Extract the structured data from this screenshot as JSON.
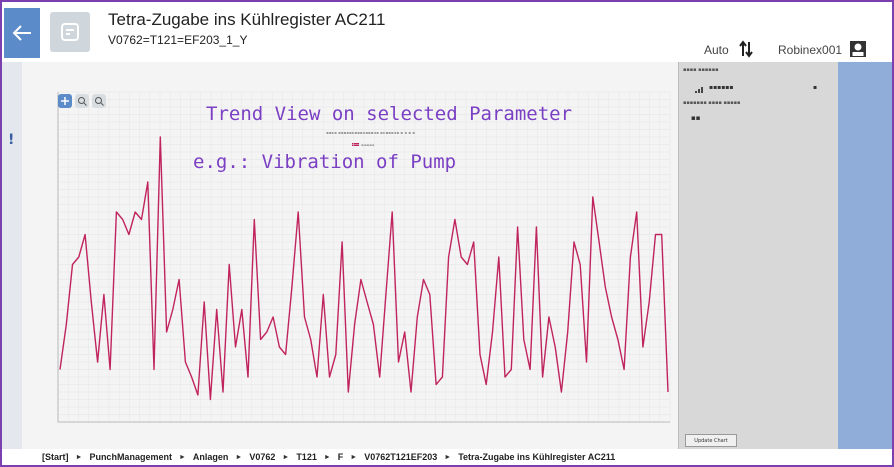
{
  "header": {
    "title": "Tetra-Zugabe ins Kühlregister AC211",
    "subtitle": "V0762=T121=EF203_1_Y",
    "mode_label": "Auto",
    "user_name": "Robinex001"
  },
  "chart": {
    "annotation_line1": "Trend View on selected Parameter",
    "annotation_line2": "e.g.: Vibration  of Pump"
  },
  "side_panel": {
    "update_button_label": "Update Chart"
  },
  "breadcrumb": {
    "items": [
      "[Start]",
      "PunchManagement",
      "Anlagen",
      "V0762",
      "T121",
      "F",
      "V0762T121EF203",
      "Tetra-Zugabe ins Kühlregister AC211"
    ]
  },
  "chart_data": {
    "type": "line",
    "series": [
      {
        "color": "#c0245e",
        "values": [
          485,
          515,
          555,
          560,
          575,
          530,
          490,
          535,
          485,
          590,
          585,
          575,
          590,
          585,
          610,
          485,
          640,
          510,
          525,
          545,
          490,
          480,
          468,
          530,
          465,
          525,
          470,
          555,
          500,
          525,
          480,
          585,
          505,
          510,
          520,
          500,
          495,
          540,
          590,
          520,
          505,
          480,
          535,
          480,
          495,
          570,
          470,
          515,
          545,
          530,
          515,
          480,
          535,
          590,
          490,
          510,
          470,
          520,
          545,
          535,
          475,
          480,
          560,
          585,
          560,
          555,
          570,
          495,
          475,
          510,
          560,
          480,
          485,
          580,
          505,
          485,
          580,
          480,
          520,
          500,
          470,
          510,
          570,
          555,
          490,
          600,
          570,
          540,
          520,
          505,
          485,
          560,
          590,
          500,
          530,
          575,
          575,
          470
        ]
      }
    ],
    "ylim": [
      450,
      670
    ],
    "grid": true,
    "legend": "top-center"
  }
}
